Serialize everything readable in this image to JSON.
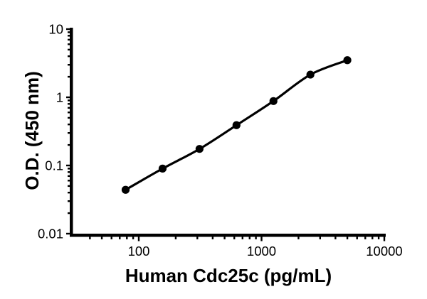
{
  "figure": {
    "background": "#ffffff",
    "foreground": "#000000"
  },
  "chart_data": {
    "type": "line",
    "subtype": "elisa-standard-curve",
    "title": "",
    "xlabel": "Human Cdc25c (pg/mL)",
    "ylabel": "O.D. (450 nm)",
    "x_scale": "log10",
    "y_scale": "log10",
    "x": [
      78.1,
      156.3,
      312.5,
      625,
      1250,
      2500,
      5000
    ],
    "y": [
      0.044,
      0.09,
      0.175,
      0.39,
      0.88,
      2.15,
      3.5
    ],
    "xlim": [
      27.5,
      10300
    ],
    "ylim": [
      0.0091,
      10.5
    ],
    "x_major_ticks": {
      "values": [
        100,
        1000,
        10000
      ],
      "labels": [
        "100",
        "1000",
        "10000"
      ]
    },
    "y_major_ticks": {
      "values": [
        10,
        1,
        0.1,
        0.01
      ],
      "labels": [
        "10",
        "1",
        "0.1",
        "0.01"
      ]
    },
    "x_minor_ticks": [
      40,
      50,
      60,
      70,
      80,
      90,
      200,
      300,
      400,
      500,
      600,
      700,
      800,
      900,
      2000,
      3000,
      4000,
      5000,
      6000,
      7000,
      8000,
      9000
    ],
    "y_minor_ticks": [
      2,
      3,
      4,
      5,
      6,
      7,
      8,
      9,
      0.2,
      0.3,
      0.4,
      0.5,
      0.6,
      0.7,
      0.8,
      0.9,
      0.02,
      0.03,
      0.04,
      0.05,
      0.06,
      0.07,
      0.08,
      0.09
    ],
    "grid": false,
    "legend": null,
    "marker": "filled-circle",
    "line_color": "#000000",
    "marker_color": "#000000"
  }
}
